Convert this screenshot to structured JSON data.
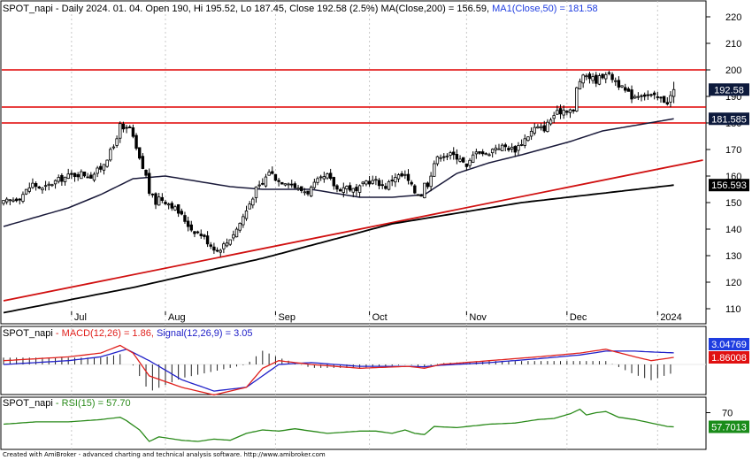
{
  "chart_data": [
    {
      "type": "candlestick",
      "title": {
        "symbol": "SPOT_napi",
        "header": " - Daily 2024. 01. 04. Open 190, Hi 195.52, Lo 187.45, Close 192.58 (2.5%) ",
        "ma200_label": "MA(Close,200) = 156.59,",
        "ma50_label": "MA1(Close,50) = 181.58"
      },
      "months": [
        "Jul",
        "Aug",
        "Sep",
        "Oct",
        "Nov",
        "Dec",
        "2024"
      ],
      "ylim": [
        105,
        225
      ],
      "yticks": [
        "220",
        "210",
        "200",
        "190",
        "180",
        "170",
        "160",
        "150",
        "140",
        "130",
        "120",
        "110"
      ],
      "horizontal_lines": [
        200,
        186,
        180
      ],
      "value_labels": {
        "close": "192.58",
        "ma50": "181.585",
        "ma200": "156.593"
      },
      "last_values": {
        "open": 190,
        "high": 195.52,
        "low": 187.45,
        "close": 192.58,
        "change_pct": "2.5%"
      },
      "ohlc_anchor_closes": [
        [
          0,
          150
        ],
        [
          5,
          152
        ],
        [
          9,
          157
        ],
        [
          12,
          155
        ],
        [
          16,
          158
        ],
        [
          20,
          160
        ],
        [
          24,
          161
        ],
        [
          27,
          160
        ],
        [
          30,
          163
        ],
        [
          32,
          167
        ],
        [
          34,
          171
        ],
        [
          36,
          179
        ],
        [
          37,
          177
        ],
        [
          39,
          178
        ],
        [
          40,
          174
        ],
        [
          42,
          166
        ],
        [
          44,
          160
        ],
        [
          45,
          154
        ],
        [
          47,
          150
        ],
        [
          48,
          152
        ],
        [
          52,
          149
        ],
        [
          55,
          145
        ],
        [
          58,
          140
        ],
        [
          61,
          138
        ],
        [
          64,
          134
        ],
        [
          66,
          132
        ],
        [
          69,
          135
        ],
        [
          72,
          140
        ],
        [
          75,
          147
        ],
        [
          78,
          155
        ],
        [
          80,
          157
        ],
        [
          82,
          162
        ],
        [
          85,
          158
        ],
        [
          88,
          158
        ],
        [
          91,
          155
        ],
        [
          94,
          154
        ],
        [
          97,
          158
        ],
        [
          100,
          160
        ],
        [
          103,
          155
        ],
        [
          106,
          156
        ],
        [
          109,
          154
        ],
        [
          112,
          158
        ],
        [
          115,
          158
        ],
        [
          118,
          156
        ],
        [
          121,
          160
        ],
        [
          124,
          160
        ],
        [
          127,
          154
        ],
        [
          129,
          153
        ],
        [
          130,
          157
        ],
        [
          131,
          157
        ],
        [
          133,
          165
        ],
        [
          135,
          168
        ],
        [
          138,
          168
        ],
        [
          141,
          167
        ],
        [
          143,
          163
        ],
        [
          146,
          170
        ],
        [
          149,
          168
        ],
        [
          152,
          171
        ],
        [
          155,
          171
        ],
        [
          158,
          170
        ],
        [
          161,
          174
        ],
        [
          164,
          178
        ],
        [
          167,
          178
        ],
        [
          170,
          183
        ],
        [
          173,
          185
        ],
        [
          175,
          185
        ],
        [
          176,
          184
        ],
        [
          177,
          193
        ],
        [
          178,
          196
        ],
        [
          180,
          198
        ],
        [
          183,
          196
        ],
        [
          186,
          199
        ],
        [
          189,
          196
        ],
        [
          191,
          193
        ],
        [
          194,
          190
        ],
        [
          197,
          191
        ],
        [
          200,
          190
        ],
        [
          203,
          189
        ],
        [
          205,
          188
        ],
        [
          206,
          190
        ],
        [
          207,
          192.58
        ]
      ],
      "ma200_anchors": [
        [
          0,
          108.5
        ],
        [
          40,
          118
        ],
        [
          80,
          129
        ],
        [
          120,
          142
        ],
        [
          160,
          150
        ],
        [
          207,
          156.59
        ]
      ],
      "ma50_anchors": [
        [
          0,
          141
        ],
        [
          20,
          148
        ],
        [
          30,
          153
        ],
        [
          40,
          159
        ],
        [
          50,
          160
        ],
        [
          60,
          158
        ],
        [
          70,
          156
        ],
        [
          80,
          155
        ],
        [
          95,
          155
        ],
        [
          110,
          152
        ],
        [
          120,
          152
        ],
        [
          130,
          153
        ],
        [
          140,
          161
        ],
        [
          150,
          165
        ],
        [
          160,
          168
        ],
        [
          175,
          173
        ],
        [
          185,
          177
        ],
        [
          207,
          181.58
        ]
      ],
      "trendline_anchors": [
        [
          0,
          113
        ],
        [
          216,
          166
        ]
      ]
    },
    {
      "type": "line",
      "title": {
        "symbol": "SPOT_napi",
        "macd_label": " - MACD(12,26) = 1.86,",
        "signal_label": "Signal(12,26,9) = 3.05"
      },
      "value_labels": {
        "signal": "3.04769",
        "macd": "1.86008"
      },
      "ylim": [
        -10,
        5
      ],
      "macd_anchors": [
        [
          0,
          1
        ],
        [
          20,
          2
        ],
        [
          30,
          3
        ],
        [
          36,
          5
        ],
        [
          40,
          3
        ],
        [
          45,
          -3
        ],
        [
          55,
          -6
        ],
        [
          65,
          -8
        ],
        [
          75,
          -6
        ],
        [
          80,
          -1
        ],
        [
          85,
          1
        ],
        [
          95,
          0
        ],
        [
          110,
          -1
        ],
        [
          125,
          -0.5
        ],
        [
          130,
          -1
        ],
        [
          135,
          0
        ],
        [
          150,
          1
        ],
        [
          165,
          2
        ],
        [
          178,
          3
        ],
        [
          186,
          4
        ],
        [
          195,
          2
        ],
        [
          200,
          1
        ],
        [
          207,
          1.86
        ]
      ],
      "signal_anchors": [
        [
          0,
          0
        ],
        [
          20,
          1
        ],
        [
          30,
          2
        ],
        [
          38,
          4
        ],
        [
          45,
          1
        ],
        [
          55,
          -4
        ],
        [
          65,
          -7
        ],
        [
          75,
          -6
        ],
        [
          85,
          0
        ],
        [
          95,
          0.5
        ],
        [
          110,
          -0.5
        ],
        [
          125,
          -0.5
        ],
        [
          130,
          -0.6
        ],
        [
          135,
          -0.2
        ],
        [
          150,
          0.5
        ],
        [
          165,
          1.5
        ],
        [
          178,
          2.5
        ],
        [
          186,
          3.5
        ],
        [
          195,
          3.5
        ],
        [
          200,
          3.3
        ],
        [
          207,
          3.05
        ]
      ]
    },
    {
      "type": "line",
      "title": {
        "symbol": "SPOT_napi",
        "rsi_label": " - RSI(15) = 57.70"
      },
      "yticks": [
        "70"
      ],
      "value_labels": {
        "rsi": "57.7013"
      },
      "ylim": [
        40,
        75
      ],
      "rsi_anchors": [
        [
          0,
          60
        ],
        [
          10,
          62
        ],
        [
          20,
          62
        ],
        [
          30,
          64
        ],
        [
          36,
          66
        ],
        [
          38,
          63
        ],
        [
          42,
          55
        ],
        [
          45,
          45
        ],
        [
          48,
          49
        ],
        [
          55,
          46
        ],
        [
          60,
          45
        ],
        [
          65,
          47
        ],
        [
          70,
          46
        ],
        [
          75,
          52
        ],
        [
          80,
          55
        ],
        [
          85,
          54
        ],
        [
          90,
          56
        ],
        [
          95,
          54
        ],
        [
          100,
          52
        ],
        [
          110,
          54
        ],
        [
          115,
          54
        ],
        [
          120,
          52
        ],
        [
          124,
          55
        ],
        [
          127,
          52
        ],
        [
          130,
          51
        ],
        [
          133,
          58
        ],
        [
          140,
          57
        ],
        [
          150,
          60
        ],
        [
          158,
          61
        ],
        [
          165,
          64
        ],
        [
          170,
          65
        ],
        [
          175,
          69
        ],
        [
          178,
          73
        ],
        [
          180,
          68
        ],
        [
          183,
          70
        ],
        [
          186,
          71
        ],
        [
          190,
          66
        ],
        [
          195,
          64
        ],
        [
          200,
          61
        ],
        [
          205,
          58
        ],
        [
          207,
          57.7
        ]
      ]
    }
  ],
  "colors": {
    "background": "#ffffff",
    "candle_up": "#ffffff",
    "candle_down": "#000000",
    "ma200": "#000000",
    "ma50": "#1a1a3a",
    "resistance": "#e00000",
    "trendline": "#d01010",
    "macd": "#e0201c",
    "signal": "#2020c8",
    "rsi": "#2a8a1a",
    "label_dark": "#0d1a3c",
    "label_blue": "#1f3de0",
    "label_red": "#e01010",
    "label_green": "#1a8c1a",
    "grid": "#c8c8c8"
  },
  "footer": "Created with AmiBroker - advanced charting and technical analysis software. http://www.amibroker.com"
}
